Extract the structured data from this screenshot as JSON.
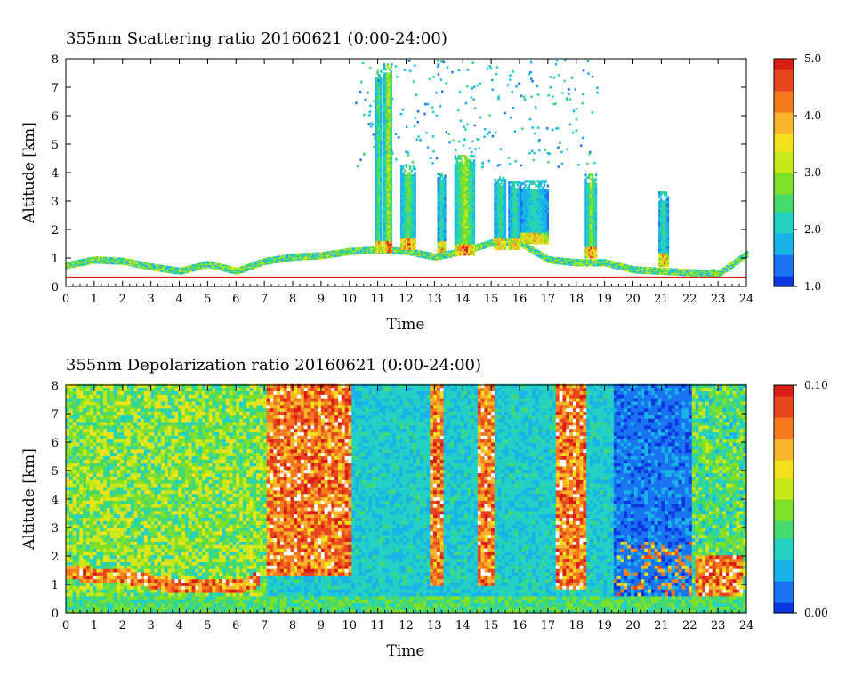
{
  "colormap": [
    "#0b36e0",
    "#1a73f0",
    "#19b3e8",
    "#23d1c4",
    "#45d96e",
    "#7fe02a",
    "#c8e81a",
    "#f2e21c",
    "#f8b42a",
    "#f57a1f",
    "#e8461e",
    "#d81e14"
  ],
  "chart_data": [
    {
      "type": "heatmap",
      "title": "355nm Scattering ratio  20160621 (0:00-24:00)",
      "xlabel": "Time",
      "ylabel": "Altitude [km]",
      "xlim": [
        0,
        24
      ],
      "ylim": [
        0,
        8
      ],
      "x_ticks": [
        "0",
        "1",
        "2",
        "3",
        "4",
        "5",
        "6",
        "7",
        "8",
        "9",
        "10",
        "11",
        "12",
        "13",
        "14",
        "15",
        "16",
        "17",
        "18",
        "19",
        "20",
        "21",
        "22",
        "23",
        "24"
      ],
      "y_ticks": [
        "0",
        "1",
        "2",
        "3",
        "4",
        "5",
        "6",
        "7",
        "8"
      ],
      "colorbar": {
        "min": 1.0,
        "max": 5.0,
        "tick_labels": [
          "1.0",
          "2.0",
          "3.0",
          "4.0",
          "5.0"
        ]
      },
      "boundary_layer_top_km": [
        [
          0,
          0.8
        ],
        [
          1,
          1.0
        ],
        [
          2,
          0.95
        ],
        [
          3,
          0.75
        ],
        [
          4,
          0.6
        ],
        [
          5,
          0.85
        ],
        [
          6,
          0.6
        ],
        [
          7,
          0.95
        ],
        [
          8,
          1.1
        ],
        [
          9,
          1.15
        ],
        [
          10,
          1.3
        ],
        [
          11,
          1.35
        ],
        [
          12,
          1.3
        ],
        [
          13,
          1.1
        ],
        [
          14,
          1.3
        ],
        [
          15,
          1.6
        ],
        [
          16,
          1.6
        ],
        [
          17,
          1.0
        ],
        [
          18,
          0.9
        ],
        [
          19,
          0.9
        ],
        [
          20,
          0.65
        ],
        [
          21,
          0.6
        ],
        [
          22,
          0.55
        ],
        [
          23,
          0.5
        ],
        [
          24,
          1.2
        ]
      ],
      "clouds": [
        {
          "t0": 10.9,
          "t1": 11.1,
          "z0": 1.2,
          "z1": 7.6,
          "peak": 3.0
        },
        {
          "t0": 11.2,
          "t1": 11.5,
          "z0": 1.2,
          "z1": 7.8,
          "peak": 3.6
        },
        {
          "t0": 11.8,
          "t1": 12.3,
          "z0": 1.3,
          "z1": 4.2,
          "peak": 3.0
        },
        {
          "t0": 13.1,
          "t1": 13.35,
          "z0": 1.2,
          "z1": 4.0,
          "peak": 2.6
        },
        {
          "t0": 13.7,
          "t1": 14.4,
          "z0": 1.1,
          "z1": 4.6,
          "peak": 3.4
        },
        {
          "t0": 15.1,
          "t1": 15.5,
          "z0": 1.3,
          "z1": 3.8,
          "peak": 2.6
        },
        {
          "t0": 15.6,
          "t1": 16.0,
          "z0": 1.3,
          "z1": 3.7,
          "peak": 2.6
        },
        {
          "t0": 16.0,
          "t1": 17.0,
          "z0": 1.5,
          "z1": 3.7,
          "peak": 2.4
        },
        {
          "t0": 18.3,
          "t1": 18.7,
          "z0": 1.0,
          "z1": 3.9,
          "peak": 3.2
        },
        {
          "t0": 20.9,
          "t1": 21.2,
          "z0": 0.7,
          "z1": 3.3,
          "peak": 2.8
        }
      ]
    },
    {
      "type": "heatmap",
      "title": "355nm Depolarization ratio  20160621 (0:00-24:00)",
      "xlabel": "Time",
      "ylabel": "Altitude [km]",
      "xlim": [
        0,
        24
      ],
      "ylim": [
        0,
        8
      ],
      "x_ticks": [
        "0",
        "1",
        "2",
        "3",
        "4",
        "5",
        "6",
        "7",
        "8",
        "9",
        "10",
        "11",
        "12",
        "13",
        "14",
        "15",
        "16",
        "17",
        "18",
        "19",
        "20",
        "21",
        "22",
        "23",
        "24"
      ],
      "y_ticks": [
        "0",
        "1",
        "2",
        "3",
        "4",
        "5",
        "6",
        "7",
        "8"
      ],
      "colorbar": {
        "min": 0.0,
        "max": 0.1,
        "tick_labels": [
          "0.00",
          "0.10"
        ]
      },
      "dust_layer_top_km": [
        [
          0,
          1.5
        ],
        [
          2,
          1.4
        ],
        [
          3,
          1.2
        ],
        [
          4,
          1.0
        ],
        [
          5,
          1.1
        ],
        [
          6,
          1.0
        ],
        [
          6.8,
          1.3
        ],
        [
          7,
          8.0
        ],
        [
          10,
          8.0
        ],
        [
          10.2,
          2.2
        ]
      ],
      "high_depol_columns": [
        {
          "t0": 7.0,
          "t1": 10.0,
          "z0": 1.3,
          "z1": 8.0
        },
        {
          "t0": 12.8,
          "t1": 13.3,
          "z0": 0.9,
          "z1": 8.0
        },
        {
          "t0": 14.5,
          "t1": 15.0,
          "z0": 0.9,
          "z1": 8.0
        },
        {
          "t0": 17.2,
          "t1": 18.3,
          "z0": 0.8,
          "z1": 8.0
        },
        {
          "t0": 22.2,
          "t1": 23.8,
          "z0": 0.5,
          "z1": 2.0
        }
      ]
    }
  ]
}
